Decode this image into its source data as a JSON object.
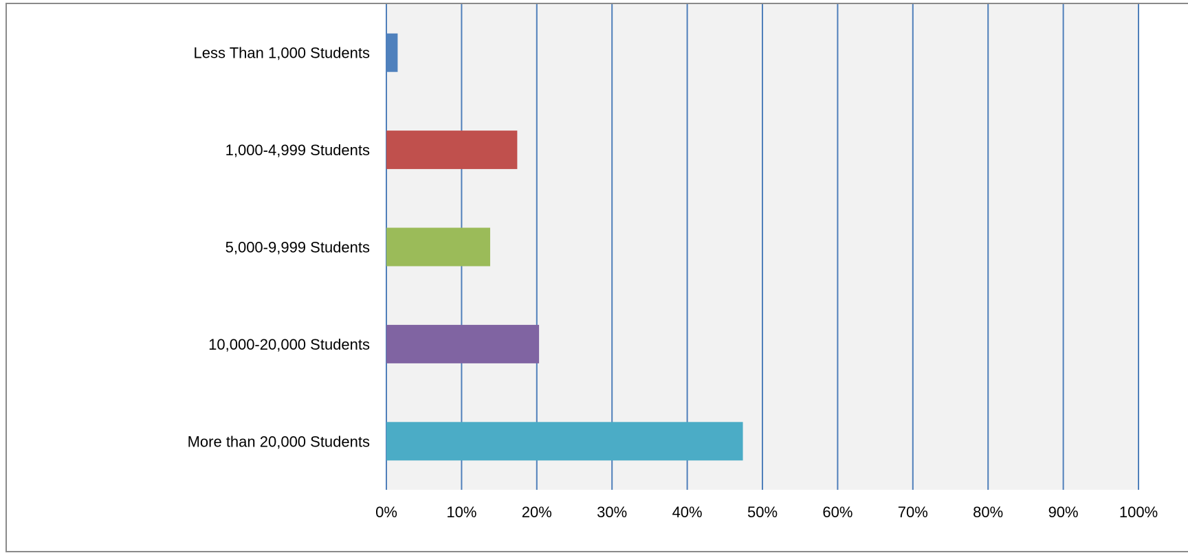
{
  "chart_data": {
    "type": "bar",
    "orientation": "horizontal",
    "title": "",
    "xlabel": "",
    "ylabel": "",
    "categories": [
      "Less Than 1,000 Students",
      "1,000-4,999 Students",
      "5,000-9,999 Students",
      "10,000-20,000 Students",
      "More than 20,000 Students"
    ],
    "values": [
      1.5,
      17.4,
      13.8,
      20.3,
      47.4
    ],
    "value_unit": "%",
    "colors": [
      "#4f81bd",
      "#c0504d",
      "#9bbb59",
      "#8064a2",
      "#4bacc6"
    ],
    "xlim": [
      0,
      100
    ],
    "x_ticks": [
      "0%",
      "10%",
      "20%",
      "30%",
      "40%",
      "50%",
      "60%",
      "70%",
      "80%",
      "90%",
      "100%"
    ],
    "grid": true,
    "gridline_color": "#4f7fba",
    "plot_background": "#f2f2f2",
    "legend": "none"
  }
}
